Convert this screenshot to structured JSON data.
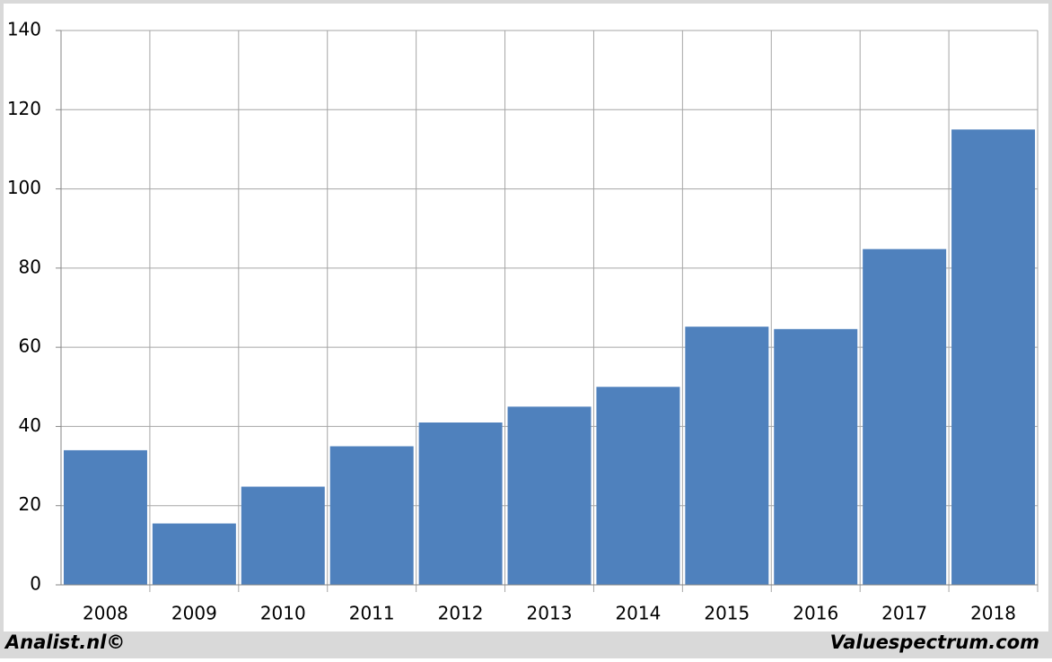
{
  "chart_data": {
    "type": "bar",
    "categories": [
      "2008",
      "2009",
      "2010",
      "2011",
      "2012",
      "2013",
      "2014",
      "2015",
      "2016",
      "2017",
      "2018"
    ],
    "values": [
      34,
      15.5,
      24.8,
      35,
      41,
      45,
      50,
      65.2,
      64.6,
      84.8,
      115
    ],
    "color": "#4f81bd",
    "ylim": [
      0,
      140
    ],
    "yticks": [
      0,
      20,
      40,
      60,
      80,
      100,
      120,
      140
    ],
    "grid": true
  },
  "footer": {
    "left": "Analist.nl©",
    "right": "Valuespectrum.com"
  }
}
